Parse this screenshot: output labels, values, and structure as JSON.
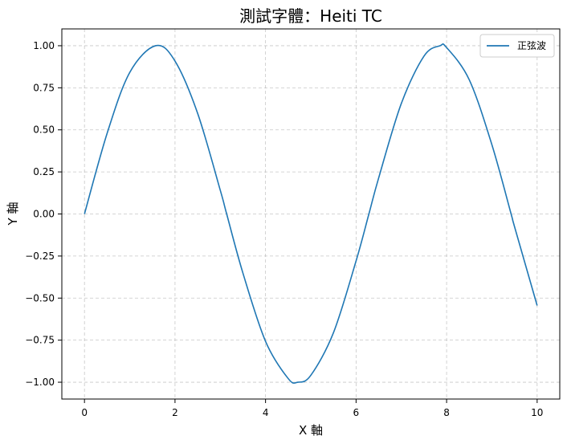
{
  "chart_data": {
    "type": "line",
    "title": "測試字體：Heiti TC",
    "xlabel": "X 軸",
    "ylabel": "Y 軸",
    "xlim": [
      -0.5,
      10.5
    ],
    "ylim": [
      -1.1,
      1.1
    ],
    "xticks": [
      0,
      2,
      4,
      6,
      8,
      10
    ],
    "xtick_labels": [
      "0",
      "2",
      "4",
      "6",
      "8",
      "10"
    ],
    "yticks": [
      1.0,
      0.75,
      0.5,
      0.25,
      0.0,
      -0.25,
      -0.5,
      -0.75,
      -1.0
    ],
    "ytick_labels": [
      "1.00",
      "0.75",
      "0.50",
      "0.25",
      "0.00",
      "−0.25",
      "−0.50",
      "−0.75",
      "−1.00"
    ],
    "grid": true,
    "legend_position": "top-right",
    "series": [
      {
        "name": "正弦波",
        "color": "#1f77b4",
        "x": [
          0,
          0.5,
          1.0,
          1.5708,
          2.0,
          2.5,
          3.0,
          3.1416,
          3.5,
          4.0,
          4.5,
          4.7124,
          5.0,
          5.5,
          6.0,
          6.2832,
          6.5,
          7.0,
          7.5,
          7.854,
          8.0,
          8.5,
          9.0,
          9.4248,
          9.5,
          10.0
        ],
        "y": [
          0.0,
          0.479,
          0.841,
          1.0,
          0.909,
          0.598,
          0.141,
          0.0,
          -0.351,
          -0.757,
          -0.978,
          -1.0,
          -0.959,
          -0.706,
          -0.279,
          0.0,
          0.215,
          0.657,
          0.938,
          1.0,
          0.989,
          0.798,
          0.412,
          0.0,
          -0.075,
          -0.544
        ]
      }
    ]
  }
}
